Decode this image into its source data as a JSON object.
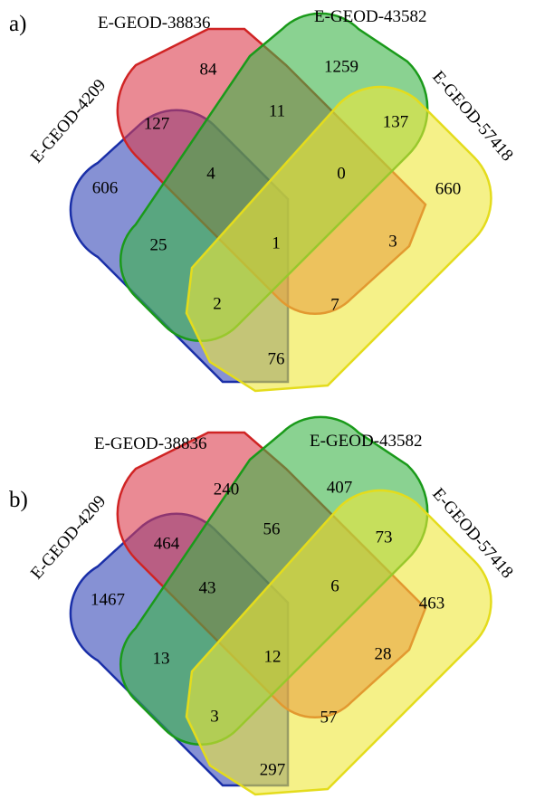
{
  "panels": [
    {
      "id": "a",
      "label": "a)",
      "sets": [
        "E-GEOD-4209",
        "E-GEOD-38836",
        "E-GEOD-43582",
        "E-GEOD-57418"
      ],
      "regions": {
        "blue_only": "606",
        "red_only": "84",
        "green_only": "1259",
        "yellow_only": "660",
        "blue_red": "127",
        "red_green": "11",
        "green_yellow": "137",
        "blue_red_green": "4",
        "red_green_yellow": "0",
        "blue_green": "25",
        "all_four": "1",
        "red_yellow": "3",
        "blue_green_yellow": "2",
        "blue_red_yellow": "7",
        "blue_yellow": "76"
      }
    },
    {
      "id": "b",
      "label": "b)",
      "sets": [
        "E-GEOD-4209",
        "E-GEOD-38836",
        "E-GEOD-43582",
        "E-GEOD-57418"
      ],
      "regions": {
        "blue_only": "1467",
        "red_only": "240",
        "green_only": "407",
        "yellow_only": "463",
        "blue_red": "464",
        "red_green": "56",
        "green_yellow": "73",
        "blue_red_green": "43",
        "red_green_yellow": "6",
        "blue_green": "13",
        "all_four": "12",
        "red_yellow": "28",
        "blue_green_yellow": "3",
        "blue_red_yellow": "57",
        "blue_yellow": "297"
      }
    }
  ],
  "colors": {
    "blue_fill": "#3548b8",
    "blue_stroke": "#1a2fa8",
    "red_fill": "#dc3c4c",
    "red_stroke": "#d02424",
    "green_fill": "#3cb448",
    "green_stroke": "#1a9a1a",
    "yellow_fill": "#eee838",
    "yellow_stroke": "#e4dc1c"
  }
}
